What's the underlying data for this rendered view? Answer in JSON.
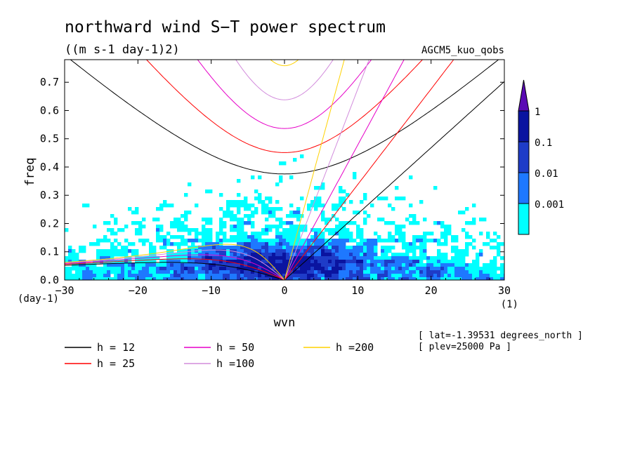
{
  "chart_data": {
    "type": "heatmap",
    "title": "northward wind S−T power spectrum",
    "subtitle": "((m s-1 day-1)2)",
    "source_label": "AGCM5_kuo_qobs",
    "xlabel": "wvn",
    "ylabel": "freq",
    "x_unit": "(1)",
    "y_unit": "(day-1)",
    "xlim": [
      -30,
      30
    ],
    "ylim": [
      0,
      0.78
    ],
    "x_ticks": [
      -30,
      -20,
      -10,
      0,
      10,
      20,
      30
    ],
    "x_tick_labels": [
      "−30",
      "−20",
      "−10",
      "0",
      "10",
      "20",
      "30"
    ],
    "y_ticks": [
      0,
      0.1,
      0.2,
      0.3,
      0.4,
      0.5,
      0.6,
      0.7
    ],
    "y_tick_labels": [
      "0.0",
      "0.1",
      "0.2",
      "0.3",
      "0.4",
      "0.5",
      "0.6",
      "0.7"
    ],
    "colorbar": {
      "levels": [
        "0.001",
        "0.01",
        "0.1",
        "1"
      ],
      "colors": [
        "#00ffff",
        "#1e78ff",
        "#1e3cc8",
        "#0a14a0",
        "#5a0ab4"
      ]
    },
    "dispersion_curves": [
      {
        "label": "h = 12",
        "h": 12,
        "color": "#000000"
      },
      {
        "label": "h = 25",
        "h": 25,
        "color": "#ff0000"
      },
      {
        "label": "h = 50",
        "h": 50,
        "color": "#e600c8"
      },
      {
        "label": "h =100",
        "h": 100,
        "color": "#d28cdc"
      },
      {
        "label": "h =200",
        "h": 200,
        "color": "#ffd200"
      }
    ],
    "annotations": [
      "[ lat=-1.39531 degrees_north ]",
      "[ plev=25000 Pa ]"
    ],
    "grid": false
  }
}
